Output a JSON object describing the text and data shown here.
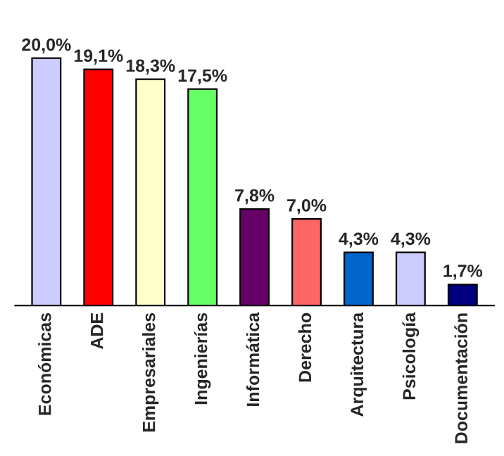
{
  "chart_data": {
    "type": "bar",
    "categories": [
      "Económicas",
      "ADE",
      "Empresariales",
      "Ingenierías",
      "Informática",
      "Derecho",
      "Arquitectura",
      "Psicología",
      "Documentación"
    ],
    "values": [
      20.0,
      19.1,
      18.3,
      17.5,
      7.8,
      7.0,
      4.3,
      4.3,
      1.7
    ],
    "value_labels": [
      "20,0%",
      "19,1%",
      "18,3%",
      "17,5%",
      "7,8%",
      "7,0%",
      "4,3%",
      "4,3%",
      "1,7%"
    ],
    "colors": [
      "#ccccff",
      "#ff0000",
      "#ffffcc",
      "#66ff66",
      "#660066",
      "#ff6666",
      "#0066cc",
      "#ccccff",
      "#000080"
    ],
    "tick_labels": "x",
    "grid": false,
    "legend": false
  }
}
